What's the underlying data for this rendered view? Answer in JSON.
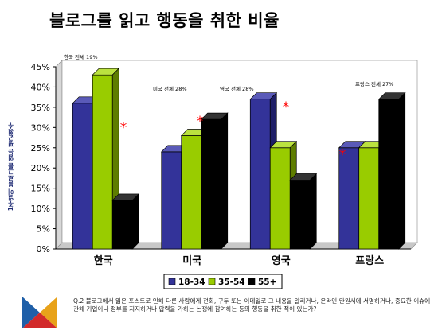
{
  "page": {
    "title": "블로그를 읽고 행동을 취한 비율",
    "ylabel": "1주일에 블로그를 읽는 평균횟수",
    "footnote": "Q.2 블로그에서 읽은 포스트로 인해 다른 사람에게 전화, 구두 또는 이메일로 그 내용을 알리거나, 온라인 탄원서에 서명하거나, 중요한 이슈에 관해 기업이나 정부를 지지하거나 압력을 가하는 논쟁에 참여하는 등의 행동을 취한 적이 있는가?"
  },
  "colors": {
    "s1": "#333399",
    "s2": "#99cc00",
    "s3": "#000000",
    "star": "#ff0000"
  },
  "chart_data": {
    "type": "bar",
    "title": "블로그를 읽고 행동을 취한 비율",
    "ylabel": "1주일에 블로그를 읽는 평균횟수",
    "categories": [
      "한국",
      "미국",
      "영국",
      "프랑스"
    ],
    "series": [
      {
        "name": "18-34",
        "values": [
          36,
          24,
          37,
          25
        ]
      },
      {
        "name": "35-54",
        "values": [
          43,
          28,
          25,
          25
        ]
      },
      {
        "name": "55+",
        "values": [
          12,
          32,
          17,
          37
        ]
      }
    ],
    "overall_labels": [
      "한국 전체 19%",
      "미국 전체 28%",
      "영국 전체 28%",
      "프랑스 전체 27%"
    ],
    "overall_values": [
      19,
      28,
      28,
      27
    ],
    "ylim": [
      0,
      45
    ],
    "yticks": [
      "0%",
      "5%",
      "10%",
      "15%",
      "20%",
      "25%",
      "30%",
      "35%",
      "40%",
      "45%"
    ],
    "grid": false,
    "legend_position": "bottom"
  }
}
